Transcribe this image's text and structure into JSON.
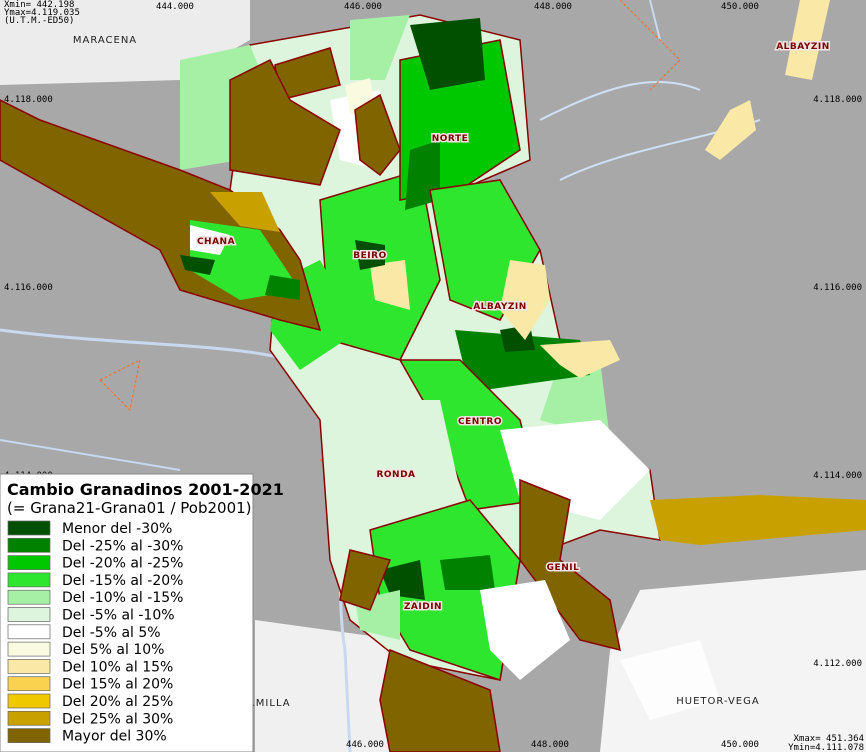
{
  "map": {
    "corner_top": [
      "Xmin=  442.198",
      "Ymax=4.119.035",
      "(U.T.M.-ED50)"
    ],
    "corner_bottom": [
      "Xmax=  451.364",
      "Ymin=4.111.078"
    ],
    "top_ticks": [
      "444.000",
      "446.000",
      "448.000",
      "450.000"
    ],
    "bottom_ticks": [
      "446.000",
      "448.000",
      "450.000"
    ],
    "side_ticks": [
      "4.118.000",
      "4.116.000",
      "4.114.000",
      "4.112.000"
    ],
    "places": {
      "maracena": "MARACENA",
      "albayzin_north": "ALBAYZIN",
      "norte": "NORTE",
      "chana": "CHANA",
      "beiro": "BEIRO",
      "albayzin": "ALBAYZIN",
      "centro": "CENTRO",
      "ronda": "RONDA",
      "genil": "GENIL",
      "zaidin": "ZAIDIN",
      "huetor_vega": "HUETOR-VEGA",
      "armilla": "ARMILLA"
    },
    "legend": {
      "title": "Cambio Granadinos 2001-2021",
      "subtitle": "(= Grana21-Grana01 / Pob2001)",
      "items": [
        {
          "label": "Menor del -30%",
          "color": "#005000"
        },
        {
          "label": "Del -25% al -30%",
          "color": "#008200"
        },
        {
          "label": "Del -20% al -25%",
          "color": "#00c800"
        },
        {
          "label": "Del -15% al -20%",
          "color": "#2ee62e"
        },
        {
          "label": "Del -10% al -15%",
          "color": "#a6f0a6"
        },
        {
          "label": "Del -5% al -10%",
          "color": "#dcf5dc"
        },
        {
          "label": "Del -5% al 5%",
          "color": "#ffffff"
        },
        {
          "label": "Del 5% al 10%",
          "color": "#fafae0"
        },
        {
          "label": "Del 10% al 15%",
          "color": "#fae9a6"
        },
        {
          "label": "Del 15% al 20%",
          "color": "#fad250"
        },
        {
          "label": "Del 20% al 25%",
          "color": "#f0c800"
        },
        {
          "label": "Del 25% al 30%",
          "color": "#c8a000"
        },
        {
          "label": "Mayor del 30%",
          "color": "#806400"
        }
      ]
    }
  }
}
